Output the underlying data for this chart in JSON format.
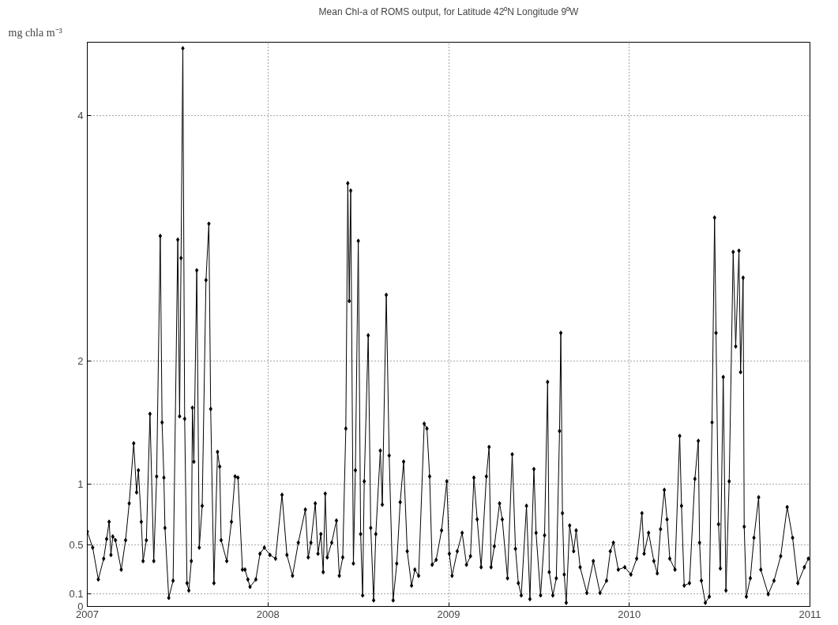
{
  "chart_data": {
    "type": "line",
    "title": "Mean Chl-a of ROMS output, for Latitude 42⁰N Longitude 9⁰W",
    "ylabel": "mg chla m⁻³",
    "xlim": [
      2007,
      2011
    ],
    "xticks": [
      2007,
      2008,
      2009,
      2010,
      2011
    ],
    "ylim": [
      0,
      4.6
    ],
    "yticks": [
      0,
      0.1,
      0.5,
      1,
      2,
      4
    ],
    "grid": true,
    "marker": "diamond",
    "line_style": "solid",
    "series": [
      {
        "color": "#000000",
        "x": [
          2007.0,
          2007.03,
          2007.061,
          2007.091,
          2007.107,
          2007.121,
          2007.131,
          2007.141,
          2007.156,
          2007.188,
          2007.212,
          2007.232,
          2007.257,
          2007.273,
          2007.283,
          2007.299,
          2007.309,
          2007.327,
          2007.347,
          2007.368,
          2007.384,
          2007.404,
          2007.414,
          2007.424,
          2007.43,
          2007.451,
          2007.475,
          2007.501,
          2007.511,
          2007.519,
          2007.529,
          2007.539,
          2007.552,
          2007.562,
          2007.576,
          2007.582,
          2007.59,
          2007.606,
          2007.62,
          2007.636,
          2007.657,
          2007.673,
          2007.683,
          2007.701,
          2007.721,
          2007.733,
          2007.741,
          2007.772,
          2007.798,
          2007.818,
          2007.834,
          2007.859,
          2007.873,
          2007.889,
          2007.901,
          2007.933,
          2007.956,
          2007.98,
          2008.011,
          2008.042,
          2008.078,
          2008.105,
          2008.136,
          2008.168,
          2008.207,
          2008.223,
          2008.238,
          2008.262,
          2008.277,
          2008.293,
          2008.306,
          2008.317,
          2008.328,
          2008.353,
          2008.379,
          2008.395,
          2008.414,
          2008.431,
          2008.442,
          2008.45,
          2008.458,
          2008.473,
          2008.484,
          2008.5,
          2008.513,
          2008.524,
          2008.533,
          2008.555,
          2008.569,
          2008.585,
          2008.597,
          2008.622,
          2008.633,
          2008.655,
          2008.671,
          2008.693,
          2008.713,
          2008.732,
          2008.751,
          2008.771,
          2008.795,
          2008.813,
          2008.834,
          2008.865,
          2008.88,
          2008.895,
          2008.909,
          2008.931,
          2008.961,
          2008.99,
          2009.004,
          2009.019,
          2009.048,
          2009.075,
          2009.099,
          2009.121,
          2009.14,
          2009.158,
          2009.18,
          2009.209,
          2009.224,
          2009.235,
          2009.253,
          2009.282,
          2009.297,
          2009.326,
          2009.352,
          2009.37,
          2009.386,
          2009.402,
          2009.431,
          2009.45,
          2009.472,
          2009.484,
          2009.509,
          2009.531,
          2009.548,
          2009.557,
          2009.577,
          2009.596,
          2009.614,
          2009.621,
          2009.63,
          2009.64,
          2009.651,
          2009.67,
          2009.692,
          2009.706,
          2009.728,
          2009.765,
          2009.801,
          2009.838,
          2009.874,
          2009.895,
          2009.912,
          2009.939,
          2009.975,
          2010.009,
          2010.041,
          2010.07,
          2010.082,
          2010.107,
          2010.136,
          2010.155,
          2010.173,
          2010.194,
          2010.209,
          2010.224,
          2010.253,
          2010.279,
          2010.289,
          2010.304,
          2010.333,
          2010.363,
          2010.382,
          2010.389,
          2010.399,
          2010.421,
          2010.443,
          2010.458,
          2010.472,
          2010.48,
          2010.494,
          2010.504,
          2010.52,
          2010.535,
          2010.553,
          2010.575,
          2010.589,
          2010.607,
          2010.616,
          2010.63,
          2010.636,
          2010.648,
          2010.67,
          2010.69,
          2010.716,
          2010.728,
          2010.769,
          2010.801,
          2010.838,
          2010.874,
          2010.904,
          2010.933,
          2010.969,
          2010.991
        ],
        "values": [
          0.61,
          0.48,
          0.22,
          0.39,
          0.55,
          0.69,
          0.42,
          0.57,
          0.54,
          0.3,
          0.54,
          0.84,
          1.33,
          0.93,
          1.11,
          0.69,
          0.37,
          0.54,
          1.57,
          0.37,
          1.06,
          3.02,
          1.5,
          1.05,
          0.64,
          0.07,
          0.21,
          2.99,
          1.55,
          2.84,
          4.55,
          1.53,
          0.19,
          0.13,
          0.37,
          1.62,
          1.18,
          2.74,
          0.48,
          0.82,
          2.66,
          3.12,
          1.61,
          0.19,
          1.26,
          1.14,
          0.54,
          0.37,
          0.69,
          1.06,
          1.05,
          0.3,
          0.3,
          0.22,
          0.16,
          0.22,
          0.43,
          0.48,
          0.42,
          0.39,
          0.91,
          0.42,
          0.25,
          0.52,
          0.79,
          0.4,
          0.52,
          0.84,
          0.43,
          0.59,
          0.28,
          0.92,
          0.4,
          0.52,
          0.7,
          0.25,
          0.4,
          1.45,
          3.45,
          2.49,
          3.39,
          0.35,
          1.11,
          2.98,
          0.59,
          0.09,
          1.02,
          2.21,
          0.64,
          0.05,
          0.59,
          1.27,
          0.83,
          2.54,
          1.23,
          0.05,
          0.35,
          0.85,
          1.18,
          0.45,
          0.17,
          0.3,
          0.25,
          1.49,
          1.45,
          1.06,
          0.34,
          0.38,
          0.62,
          1.02,
          0.43,
          0.25,
          0.45,
          0.6,
          0.34,
          0.41,
          1.05,
          0.71,
          0.32,
          1.06,
          1.3,
          0.32,
          0.49,
          0.84,
          0.71,
          0.23,
          1.24,
          0.47,
          0.19,
          0.09,
          0.82,
          0.06,
          1.12,
          0.6,
          0.09,
          0.58,
          1.83,
          0.28,
          0.09,
          0.23,
          1.43,
          2.23,
          0.76,
          0.26,
          0.03,
          0.66,
          0.45,
          0.62,
          0.32,
          0.11,
          0.37,
          0.11,
          0.21,
          0.45,
          0.52,
          0.3,
          0.32,
          0.26,
          0.39,
          0.76,
          0.43,
          0.6,
          0.37,
          0.27,
          0.63,
          0.95,
          0.71,
          0.39,
          0.3,
          1.39,
          0.82,
          0.17,
          0.19,
          1.04,
          1.35,
          0.52,
          0.21,
          0.03,
          0.08,
          1.5,
          3.17,
          2.23,
          0.67,
          0.31,
          1.87,
          0.13,
          1.02,
          2.89,
          2.12,
          2.9,
          1.91,
          2.68,
          0.65,
          0.08,
          0.23,
          0.56,
          0.89,
          0.3,
          0.1,
          0.21,
          0.41,
          0.81,
          0.56,
          0.19,
          0.32,
          0.39
        ]
      }
    ]
  }
}
